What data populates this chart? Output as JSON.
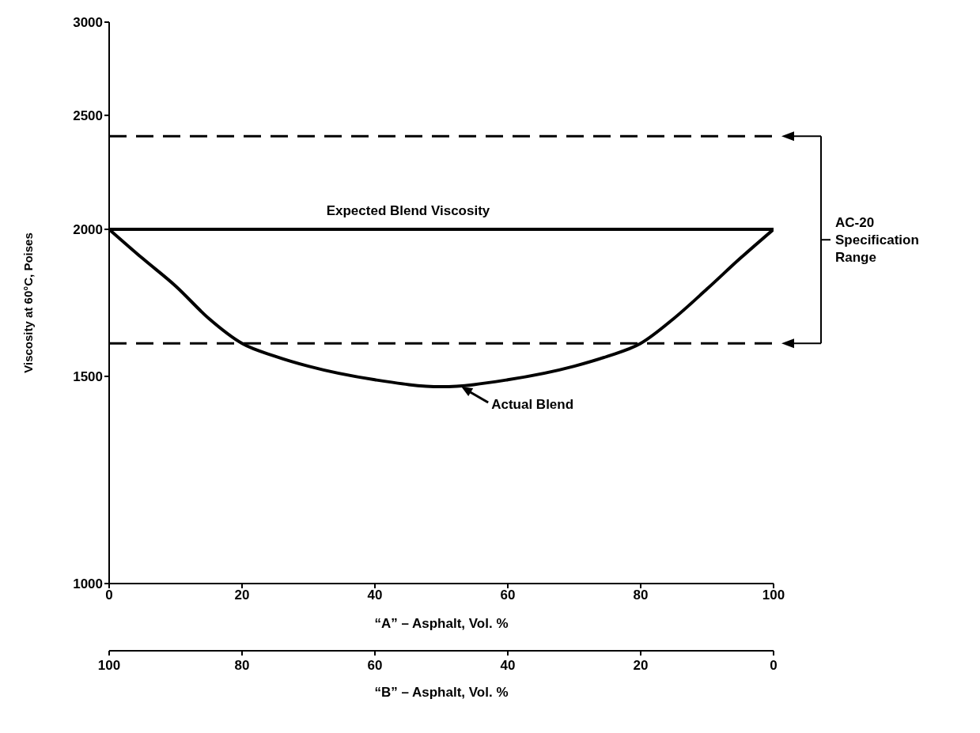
{
  "chart_data": {
    "type": "line",
    "xlabel": "“A” – Asphalt, Vol. %",
    "ylabel": "Viscosity at 60°C, Poises",
    "x2label": "“B” – Asphalt, Vol. %",
    "xlim": [
      0,
      100
    ],
    "xticks": [
      0,
      20,
      40,
      60,
      80,
      100
    ],
    "x2lim": [
      100,
      0
    ],
    "x2ticks": [
      100,
      80,
      60,
      40,
      20,
      0
    ],
    "ylim": [
      1000,
      3000
    ],
    "yticks": [
      1000,
      1500,
      2000,
      2500,
      3000
    ],
    "log": true,
    "grid": false,
    "legend": false,
    "marker": "none",
    "line_style": "solid",
    "series": [
      {
        "x": [
          0,
          100
        ],
        "values": [
          2000,
          2000
        ],
        "color": "#000000"
      },
      {
        "x": [
          0,
          5,
          10,
          15,
          20,
          25,
          30,
          40,
          50,
          60,
          70,
          75,
          80,
          85,
          90,
          95,
          100
        ],
        "values": [
          2000,
          1890,
          1790,
          1680,
          1600,
          1560,
          1530,
          1490,
          1470,
          1490,
          1530,
          1560,
          1600,
          1680,
          1780,
          1890,
          2000
        ],
        "color": "#000000"
      }
    ],
    "ref_lines": [
      {
        "axis": "y",
        "value": 2400,
        "color": "#000000",
        "line_style": "dashed"
      },
      {
        "axis": "y",
        "value": 1600,
        "color": "#000000",
        "line_style": "dashed"
      }
    ],
    "annotations": [
      {
        "text": "Expected Blend Viscosity",
        "x": 45,
        "y": 2000
      },
      {
        "text": "Actual Blend",
        "x": 53,
        "y": 1470
      },
      "AC-20 Specification Range"
    ]
  }
}
